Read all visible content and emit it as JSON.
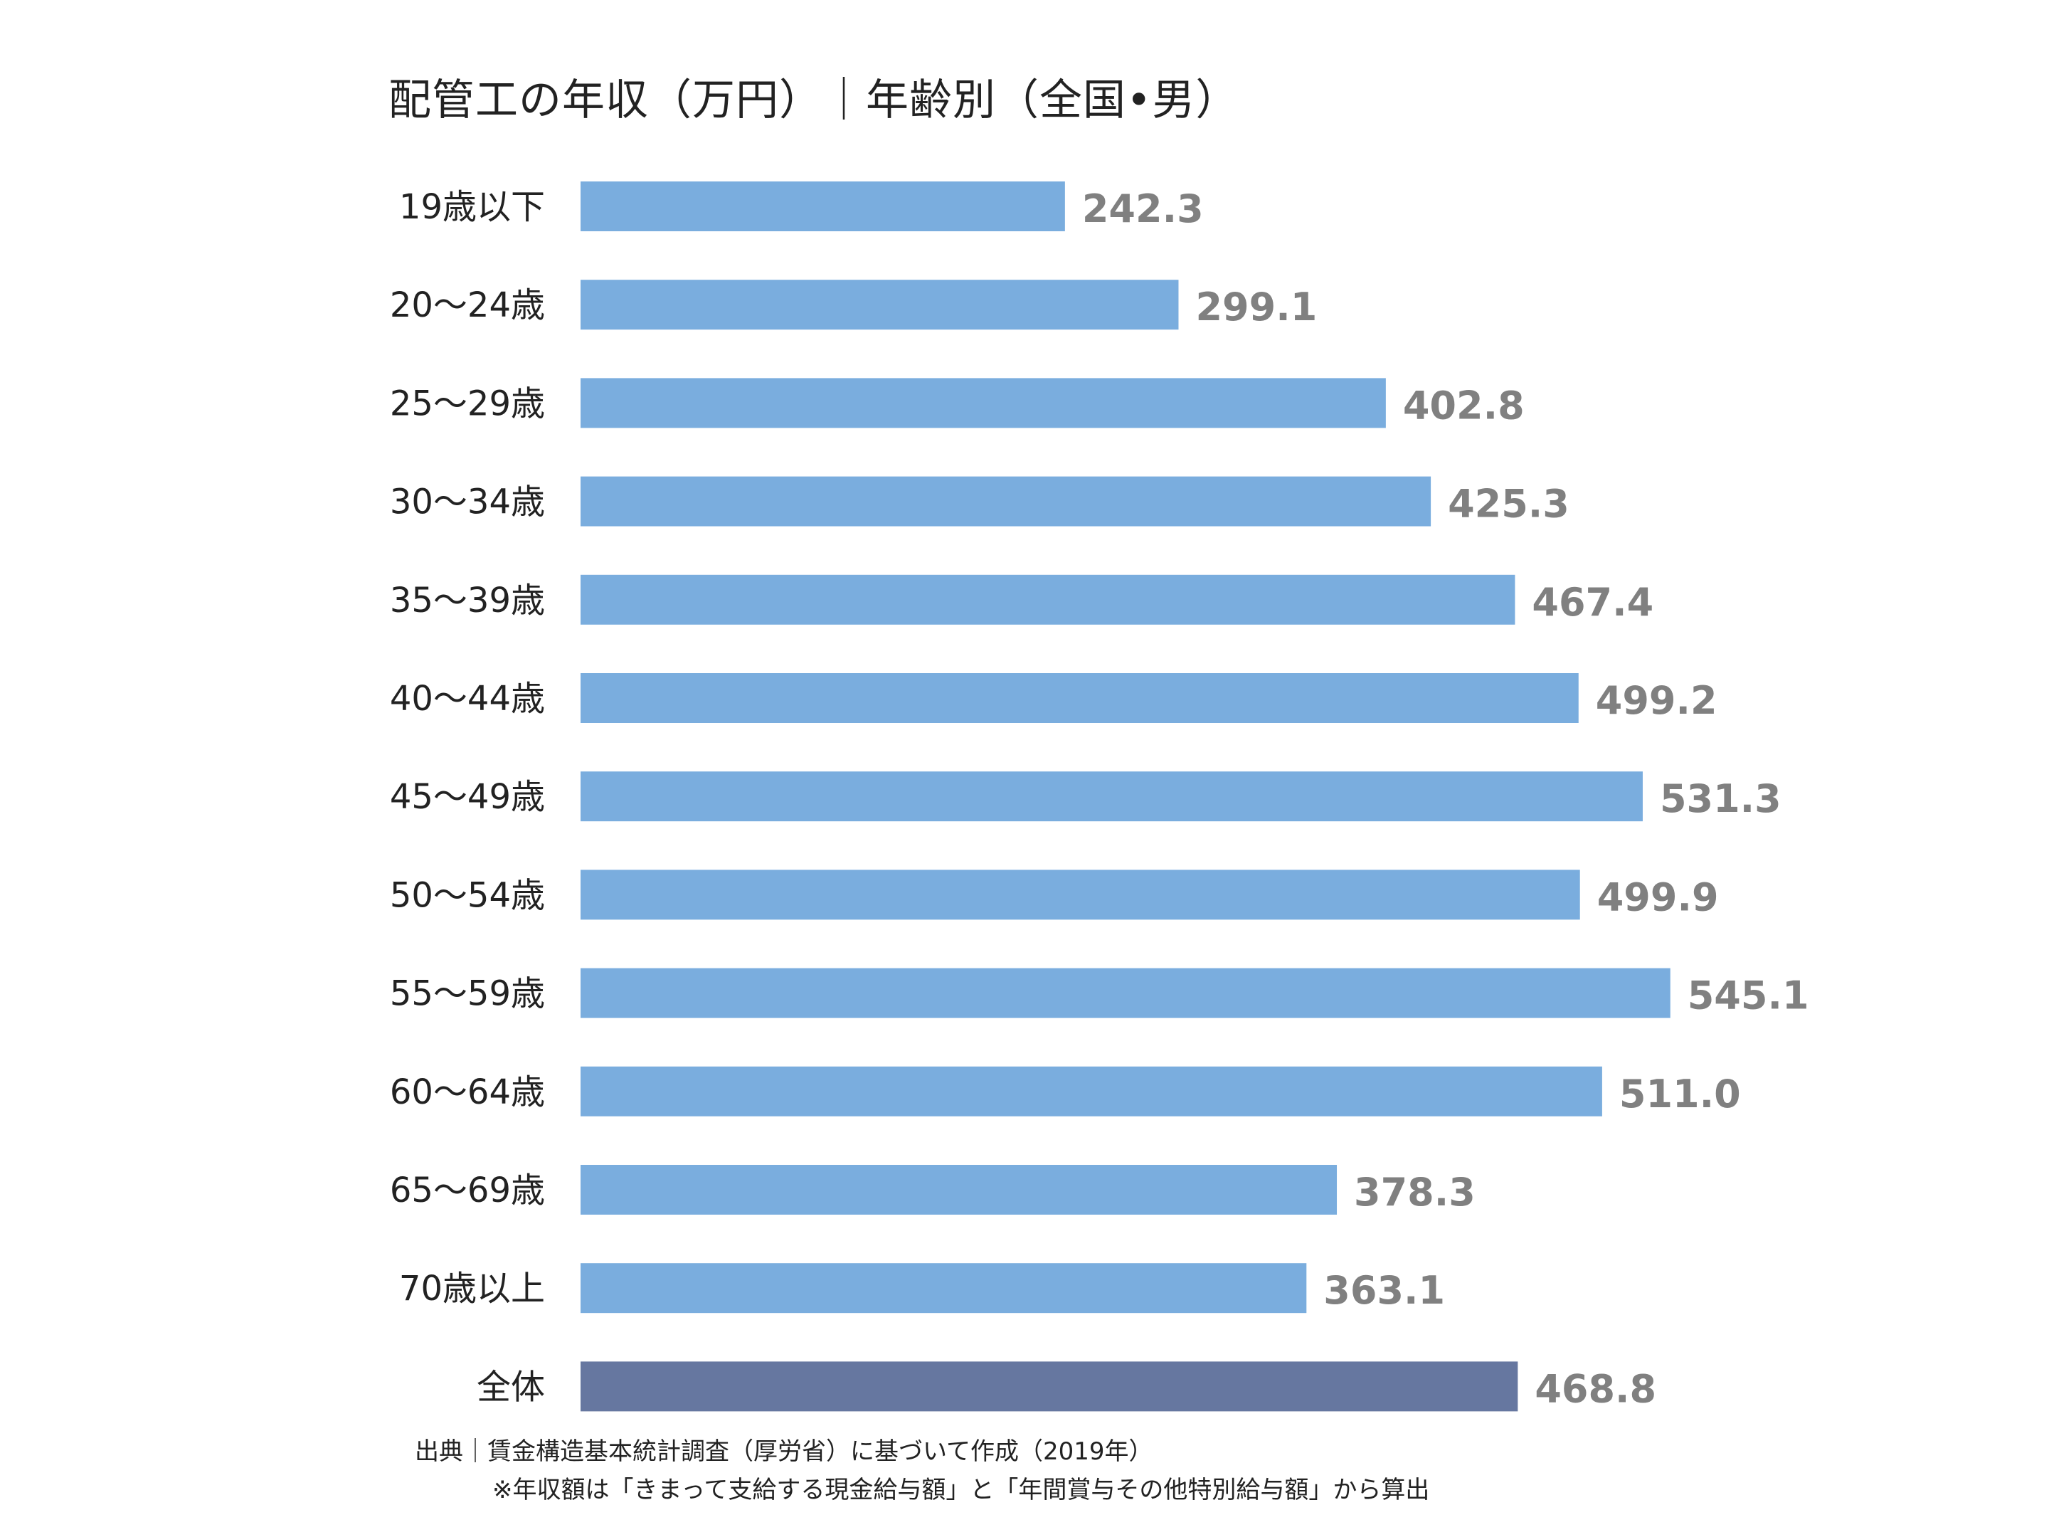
{
  "chart_data": {
    "type": "bar",
    "orientation": "horizontal",
    "title": "配管工の年収（万円）｜年齢別（全国•男）",
    "categories": [
      "19歳以下",
      "20～24歳",
      "25～29歳",
      "30～34歳",
      "35～39歳",
      "40～44歳",
      "45～49歳",
      "50～54歳",
      "55～59歳",
      "60～64歳",
      "65～69歳",
      "70歳以上",
      "全体"
    ],
    "values": [
      242.3,
      299.1,
      402.8,
      425.3,
      467.4,
      499.2,
      531.3,
      499.9,
      545.1,
      511.0,
      378.3,
      363.1,
      468.8
    ],
    "value_labels": [
      "242.3",
      "299.1",
      "402.8",
      "425.3",
      "467.4",
      "499.2",
      "531.3",
      "499.9",
      "545.1",
      "511.0",
      "378.3",
      "363.1",
      "468.8"
    ],
    "xlim": [
      0,
      600
    ],
    "grid": false,
    "legend": "none",
    "colors": {
      "bar": "#7aadde",
      "total_bar": "#6677a0",
      "value_label": "#808080"
    }
  },
  "footnotes": {
    "source": "出典｜賃金構造基本統計調査（厚労省）に基づいて作成（2019年）",
    "note": "※年収額は「きまって支給する現金給与額」と「年間賞与その他特別給与額」から算出"
  }
}
